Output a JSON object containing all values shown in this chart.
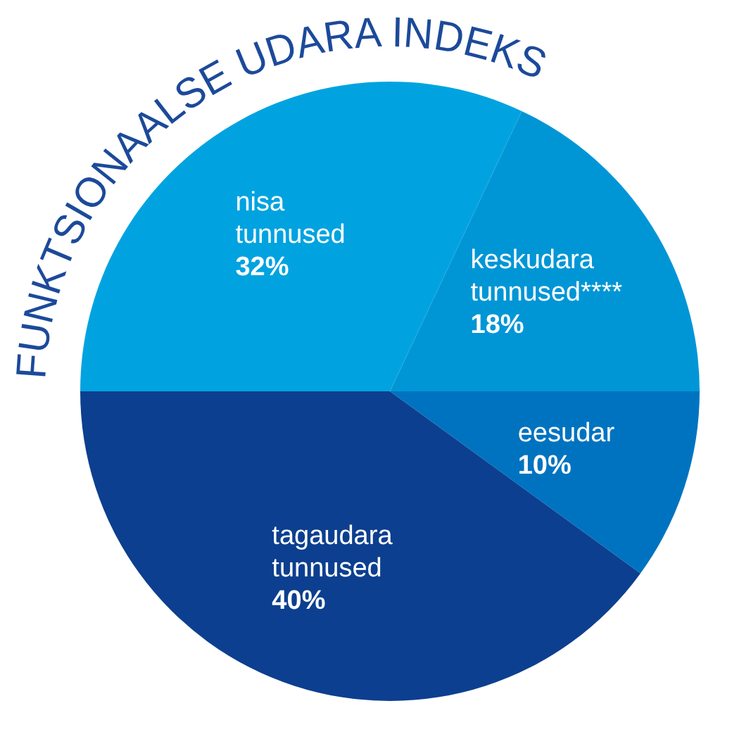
{
  "chart_data": {
    "type": "pie",
    "title": "FUNKTSIONAALSE UDARA INDEKS",
    "categories": [
      "keskudara tunnused****",
      "eesudar",
      "tagaudara tunnused",
      "nisa tunnused"
    ],
    "values": [
      18,
      10,
      40,
      32
    ],
    "value_labels": [
      "18%",
      "10%",
      "40%",
      "32%"
    ],
    "colors": [
      "#0096d6",
      "#0073c0",
      "#0c3f8f",
      "#00a3e0"
    ]
  }
}
